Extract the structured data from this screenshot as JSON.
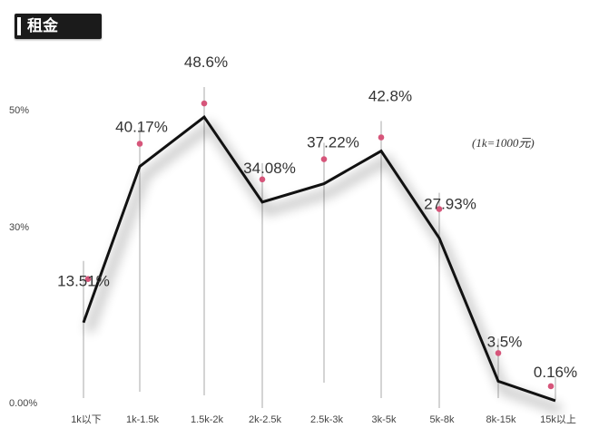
{
  "chart_data": {
    "type": "line",
    "title": "租金",
    "note": "(1k=1000元)",
    "categories": [
      "1k以下",
      "1k-1.5k",
      "1.5k-2k",
      "2k-2.5k",
      "2.5k-3k",
      "3k-5k",
      "5k-8k",
      "8k-15k",
      "15k以上"
    ],
    "values": [
      13.51,
      40.17,
      48.6,
      34.08,
      37.22,
      42.8,
      27.93,
      3.5,
      0.16
    ],
    "value_labels": [
      "13.51%",
      "40.17%",
      "48.6%",
      "34.08%",
      "37.22%",
      "42.8%",
      "27.93%",
      "3.5%",
      "0.16%"
    ],
    "y_ticks": [
      {
        "value": 0,
        "label": "0.00%"
      },
      {
        "value": 30,
        "label": "30%"
      },
      {
        "value": 50,
        "label": "50%"
      }
    ],
    "ylim": [
      0,
      50
    ],
    "grid": false,
    "legend": "none",
    "colors": {
      "line": "#111111",
      "marker": "#d6557a",
      "stem": "#9a9a9a",
      "text": "#333333",
      "title_bg": "#1b1b1b",
      "title_text": "#ffffff"
    }
  }
}
